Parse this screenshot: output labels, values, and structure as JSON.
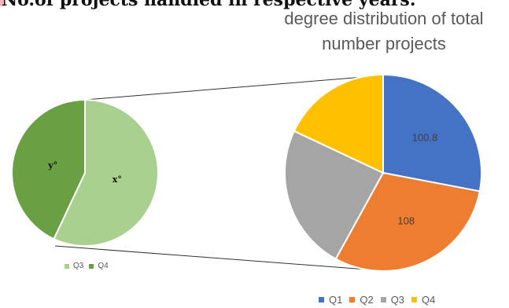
{
  "header_fragment": "No.of projects handled in respective years.",
  "title_lines": [
    "degree distribution of total",
    "number projects"
  ],
  "chart_data": [
    {
      "type": "pie",
      "title": "degree distribution of total number projects",
      "categories": [
        "Q1",
        "Q2",
        "Q3",
        "Q4"
      ],
      "values": [
        100.8,
        108,
        86.4,
        64.8
      ],
      "data_labels": [
        "100.8",
        "108",
        "",
        ""
      ],
      "colors": [
        "#4472c4",
        "#ed7d31",
        "#a5a5a5",
        "#ffc000"
      ],
      "legend": "bottom"
    },
    {
      "type": "pie",
      "categories": [
        "Q3",
        "Q4"
      ],
      "values": [
        57,
        43
      ],
      "data_labels": [
        "x°",
        "y°"
      ],
      "colors": [
        "#a9d08e",
        "#6aa043"
      ],
      "legend": "bottom-left"
    }
  ],
  "legend_main": [
    {
      "label": "Q1",
      "color": "#4472c4"
    },
    {
      "label": "Q2",
      "color": "#ed7d31"
    },
    {
      "label": "Q3",
      "color": "#a5a5a5"
    },
    {
      "label": "Q4",
      "color": "#ffc000"
    }
  ],
  "legend_sub": [
    {
      "label": "Q3",
      "color": "#a9d08e"
    },
    {
      "label": "Q4",
      "color": "#6aa043"
    }
  ]
}
